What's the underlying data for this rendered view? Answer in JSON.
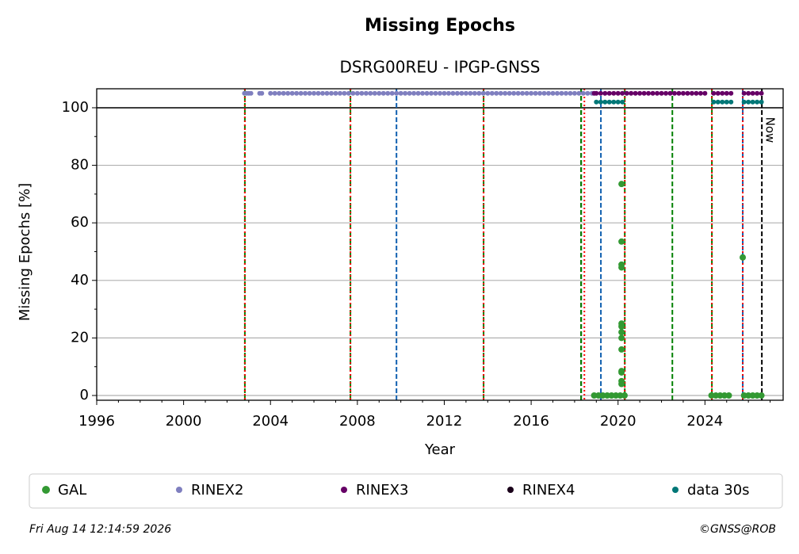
{
  "chart_data": {
    "type": "scatter",
    "title": "Missing Epochs",
    "subtitle": "DSRG00REU - IPGP-GNSS",
    "x_label": "Year",
    "y_label": "Missing Epochs [%]",
    "xlim": [
      1996,
      2027.6
    ],
    "ylim": [
      -1.65,
      106.6
    ],
    "xticks": [
      1996,
      2000,
      2004,
      2008,
      2012,
      2016,
      2020,
      2024
    ],
    "xminor_ticks": [
      1997,
      1998,
      1999,
      2001,
      2002,
      2003,
      2005,
      2006,
      2007,
      2009,
      2010,
      2011,
      2013,
      2014,
      2015,
      2017,
      2018,
      2019,
      2021,
      2022,
      2023,
      2025,
      2026,
      2027
    ],
    "yticks": [
      0,
      20,
      40,
      60,
      80,
      100
    ],
    "yminor_ticks": [
      10,
      30,
      50,
      70,
      90
    ],
    "grid": true,
    "hline": 100,
    "vlines": [
      {
        "x": 2002.82,
        "color": "#008000",
        "dash": "dashed"
      },
      {
        "x": 2002.82,
        "color": "#ff0000",
        "dash": "dotted"
      },
      {
        "x": 2007.68,
        "color": "#008000",
        "dash": "dashed"
      },
      {
        "x": 2007.68,
        "color": "#ff0000",
        "dash": "dotted"
      },
      {
        "x": 2009.8,
        "color": "#1060b0",
        "dash": "dashed"
      },
      {
        "x": 2013.81,
        "color": "#008000",
        "dash": "dashed"
      },
      {
        "x": 2013.81,
        "color": "#ff0000",
        "dash": "dotted"
      },
      {
        "x": 2018.3,
        "color": "#000000",
        "dash": "dashed"
      },
      {
        "x": 2018.3,
        "color": "#008000",
        "dash": "dashed"
      },
      {
        "x": 2018.45,
        "color": "#ff0000",
        "dash": "dotted"
      },
      {
        "x": 2019.21,
        "color": "#1060b0",
        "dash": "dashed"
      },
      {
        "x": 2020.31,
        "color": "#008000",
        "dash": "dashed"
      },
      {
        "x": 2020.31,
        "color": "#ff0000",
        "dash": "dotted"
      },
      {
        "x": 2022.5,
        "color": "#008000",
        "dash": "dashed"
      },
      {
        "x": 2024.32,
        "color": "#008000",
        "dash": "dashed"
      },
      {
        "x": 2024.32,
        "color": "#ff0000",
        "dash": "dotted"
      },
      {
        "x": 2025.74,
        "color": "#1060b0",
        "dash": "dashed"
      },
      {
        "x": 2025.74,
        "color": "#ff0000",
        "dash": "dotted"
      },
      {
        "x": 2026.62,
        "color": "#000000",
        "dash": "dashed",
        "label": "Now"
      }
    ],
    "series": [
      {
        "name": "GAL",
        "color": "#339933",
        "size": 4,
        "x": [
          2018.9,
          2019.1,
          2019.3,
          2019.5,
          2019.7,
          2019.9,
          2020.1,
          2020.3,
          2024.3,
          2024.5,
          2024.7,
          2024.9,
          2025.1,
          2025.8,
          2026.0,
          2026.2,
          2026.4,
          2026.6,
          2020.16,
          2020.16,
          2020.16,
          2020.16,
          2020.16,
          2020.16,
          2020.16,
          2020.16,
          2020.16,
          2020.16,
          2020.16,
          2020.16,
          2020.16,
          2025.74
        ],
        "values": [
          0,
          0,
          0,
          0,
          0,
          0,
          0,
          0,
          0,
          0,
          0,
          0,
          0,
          0,
          0,
          0,
          0,
          0,
          73.5,
          53.5,
          45.5,
          44.5,
          25,
          24,
          22,
          20,
          16,
          8.5,
          8,
          5,
          4,
          48
        ]
      },
      {
        "name": "RINEX2",
        "color": "#7f7fbf",
        "size": 3,
        "x": [
          2002.8,
          2002.9,
          2003.0,
          2003.1,
          2003.5,
          2003.6,
          2004.0,
          2004.2,
          2004.4,
          2004.6,
          2004.8,
          2005.0,
          2005.2,
          2005.4,
          2005.6,
          2005.8,
          2006.0,
          2006.2,
          2006.4,
          2006.6,
          2006.8,
          2007.0,
          2007.2,
          2007.4,
          2007.6,
          2007.8,
          2008.0,
          2008.2,
          2008.4,
          2008.6,
          2008.8,
          2009.0,
          2009.2,
          2009.4,
          2009.6,
          2009.8,
          2010.0,
          2010.2,
          2010.4,
          2010.6,
          2010.8,
          2011.0,
          2011.2,
          2011.4,
          2011.6,
          2011.8,
          2012.0,
          2012.2,
          2012.4,
          2012.6,
          2012.8,
          2013.0,
          2013.2,
          2013.4,
          2013.6,
          2013.8,
          2014.0,
          2014.2,
          2014.4,
          2014.6,
          2014.8,
          2015.0,
          2015.2,
          2015.4,
          2015.6,
          2015.8,
          2016.0,
          2016.2,
          2016.4,
          2016.6,
          2016.8,
          2017.0,
          2017.2,
          2017.4,
          2017.6,
          2017.8,
          2018.0,
          2018.2,
          2018.4,
          2018.6,
          2018.8
        ],
        "values": [
          105,
          105,
          105,
          105,
          105,
          105,
          105,
          105,
          105,
          105,
          105,
          105,
          105,
          105,
          105,
          105,
          105,
          105,
          105,
          105,
          105,
          105,
          105,
          105,
          105,
          105,
          105,
          105,
          105,
          105,
          105,
          105,
          105,
          105,
          105,
          105,
          105,
          105,
          105,
          105,
          105,
          105,
          105,
          105,
          105,
          105,
          105,
          105,
          105,
          105,
          105,
          105,
          105,
          105,
          105,
          105,
          105,
          105,
          105,
          105,
          105,
          105,
          105,
          105,
          105,
          105,
          105,
          105,
          105,
          105,
          105,
          105,
          105,
          105,
          105,
          105,
          105,
          105,
          105,
          105,
          105
        ]
      },
      {
        "name": "RINEX3",
        "color": "#660066",
        "size": 3,
        "x": [
          2018.9,
          2019.0,
          2019.2,
          2019.4,
          2019.6,
          2019.8,
          2020.0,
          2020.2,
          2020.4,
          2020.6,
          2020.8,
          2021.0,
          2021.2,
          2021.4,
          2021.6,
          2021.8,
          2022.0,
          2022.2,
          2022.4,
          2022.6,
          2022.8,
          2023.0,
          2023.2,
          2023.4,
          2023.6,
          2023.8,
          2024.0,
          2024.4,
          2024.6,
          2024.8,
          2025.0,
          2025.2,
          2025.8,
          2026.0,
          2026.2,
          2026.4,
          2026.6
        ],
        "values": [
          105,
          105,
          105,
          105,
          105,
          105,
          105,
          105,
          105,
          105,
          105,
          105,
          105,
          105,
          105,
          105,
          105,
          105,
          105,
          105,
          105,
          105,
          105,
          105,
          105,
          105,
          105,
          105,
          105,
          105,
          105,
          105,
          105,
          105,
          105,
          105,
          105
        ]
      },
      {
        "name": "RINEX4",
        "color": "#1a001a",
        "size": 3,
        "x": [],
        "values": []
      },
      {
        "name": "data 30s",
        "color": "#007777",
        "size": 3,
        "x": [
          2019.0,
          2019.2,
          2019.4,
          2019.6,
          2019.8,
          2020.0,
          2020.2,
          2024.4,
          2024.6,
          2024.8,
          2025.0,
          2025.2,
          2025.8,
          2026.0,
          2026.2,
          2026.4,
          2026.6
        ],
        "values": [
          102,
          102,
          102,
          102,
          102,
          102,
          102,
          102,
          102,
          102,
          102,
          102,
          102,
          102,
          102,
          102,
          102
        ]
      }
    ]
  },
  "footer": {
    "date": "Fri Aug 14 12:14:59 2026",
    "credit": "©GNSS@ROB"
  }
}
